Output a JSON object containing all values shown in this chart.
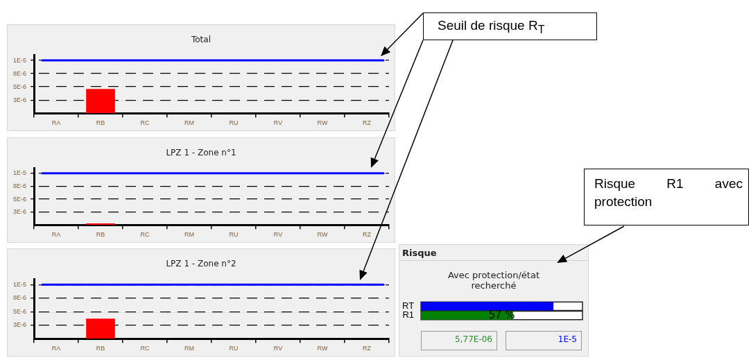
{
  "chart_data": [
    {
      "type": "bar",
      "title": "Total",
      "categories": [
        "RA",
        "RB",
        "RC",
        "RM",
        "RU",
        "RV",
        "RW",
        "RZ"
      ],
      "values": [
        0,
        4.6e-06,
        0,
        0,
        0,
        0,
        0,
        0
      ],
      "color": "#ff0000",
      "ylim": [
        0,
        1.1e-05
      ],
      "yticks": [
        {
          "value": 1e-05,
          "label": "1E-5"
        },
        {
          "value": 7.5e-06,
          "label": "8E-6"
        },
        {
          "value": 5e-06,
          "label": "5E-6"
        },
        {
          "value": 2.5e-06,
          "label": "3E-6"
        }
      ],
      "grid": "y",
      "ref_lines": [
        {
          "axis": "y",
          "value": 1e-05,
          "color": "#0000ff"
        }
      ],
      "annotations": [
        "Seuil de risque R$_{T}$"
      ]
    },
    {
      "type": "bar",
      "title": "LPZ 1 - Zone n°1",
      "categories": [
        "RA",
        "RB",
        "RC",
        "RM",
        "RU",
        "RV",
        "RW",
        "RZ"
      ],
      "values": [
        0,
        3e-07,
        0,
        0,
        0,
        0,
        0,
        0
      ],
      "color": "#ff0000",
      "ylim": [
        0,
        1.1e-05
      ],
      "yticks": [
        {
          "value": 1e-05,
          "label": "1E-5"
        },
        {
          "value": 7.5e-06,
          "label": "8E-6"
        },
        {
          "value": 5e-06,
          "label": "5E-6"
        },
        {
          "value": 2.5e-06,
          "label": "3E-6"
        }
      ],
      "grid": "y",
      "ref_lines": [
        {
          "axis": "y",
          "value": 1e-05,
          "color": "#0000ff"
        }
      ]
    },
    {
      "type": "bar",
      "title": "LPZ 1 - Zone n°2",
      "categories": [
        "RA",
        "RB",
        "RC",
        "RM",
        "RU",
        "RV",
        "RW",
        "RZ"
      ],
      "values": [
        0,
        3.7e-06,
        0,
        0,
        0,
        0,
        0,
        0
      ],
      "color": "#ff0000",
      "ylim": [
        0,
        1.1e-05
      ],
      "yticks": [
        {
          "value": 1e-05,
          "label": "1E-5"
        },
        {
          "value": 7.5e-06,
          "label": "8E-6"
        },
        {
          "value": 5e-06,
          "label": "5E-6"
        },
        {
          "value": 2.5e-06,
          "label": "3E-6"
        }
      ],
      "grid": "y",
      "ref_lines": [
        {
          "axis": "y",
          "value": 1e-05,
          "color": "#0000ff"
        }
      ]
    },
    {
      "type": "bar",
      "orientation": "horizontal",
      "title": "Risque",
      "subtitle": "Avec protection/état recherché",
      "categories": [
        "RT",
        "R1"
      ],
      "values": [
        82,
        57
      ],
      "xlim": [
        0,
        100
      ],
      "colors": [
        "#0000ff",
        "#008000"
      ],
      "value_labels": [
        null,
        "57 %"
      ],
      "tick_labels": "y",
      "annotations": [
        "5,77E-06",
        "1E-5",
        "Risque R1 avec protection"
      ]
    }
  ]
}
